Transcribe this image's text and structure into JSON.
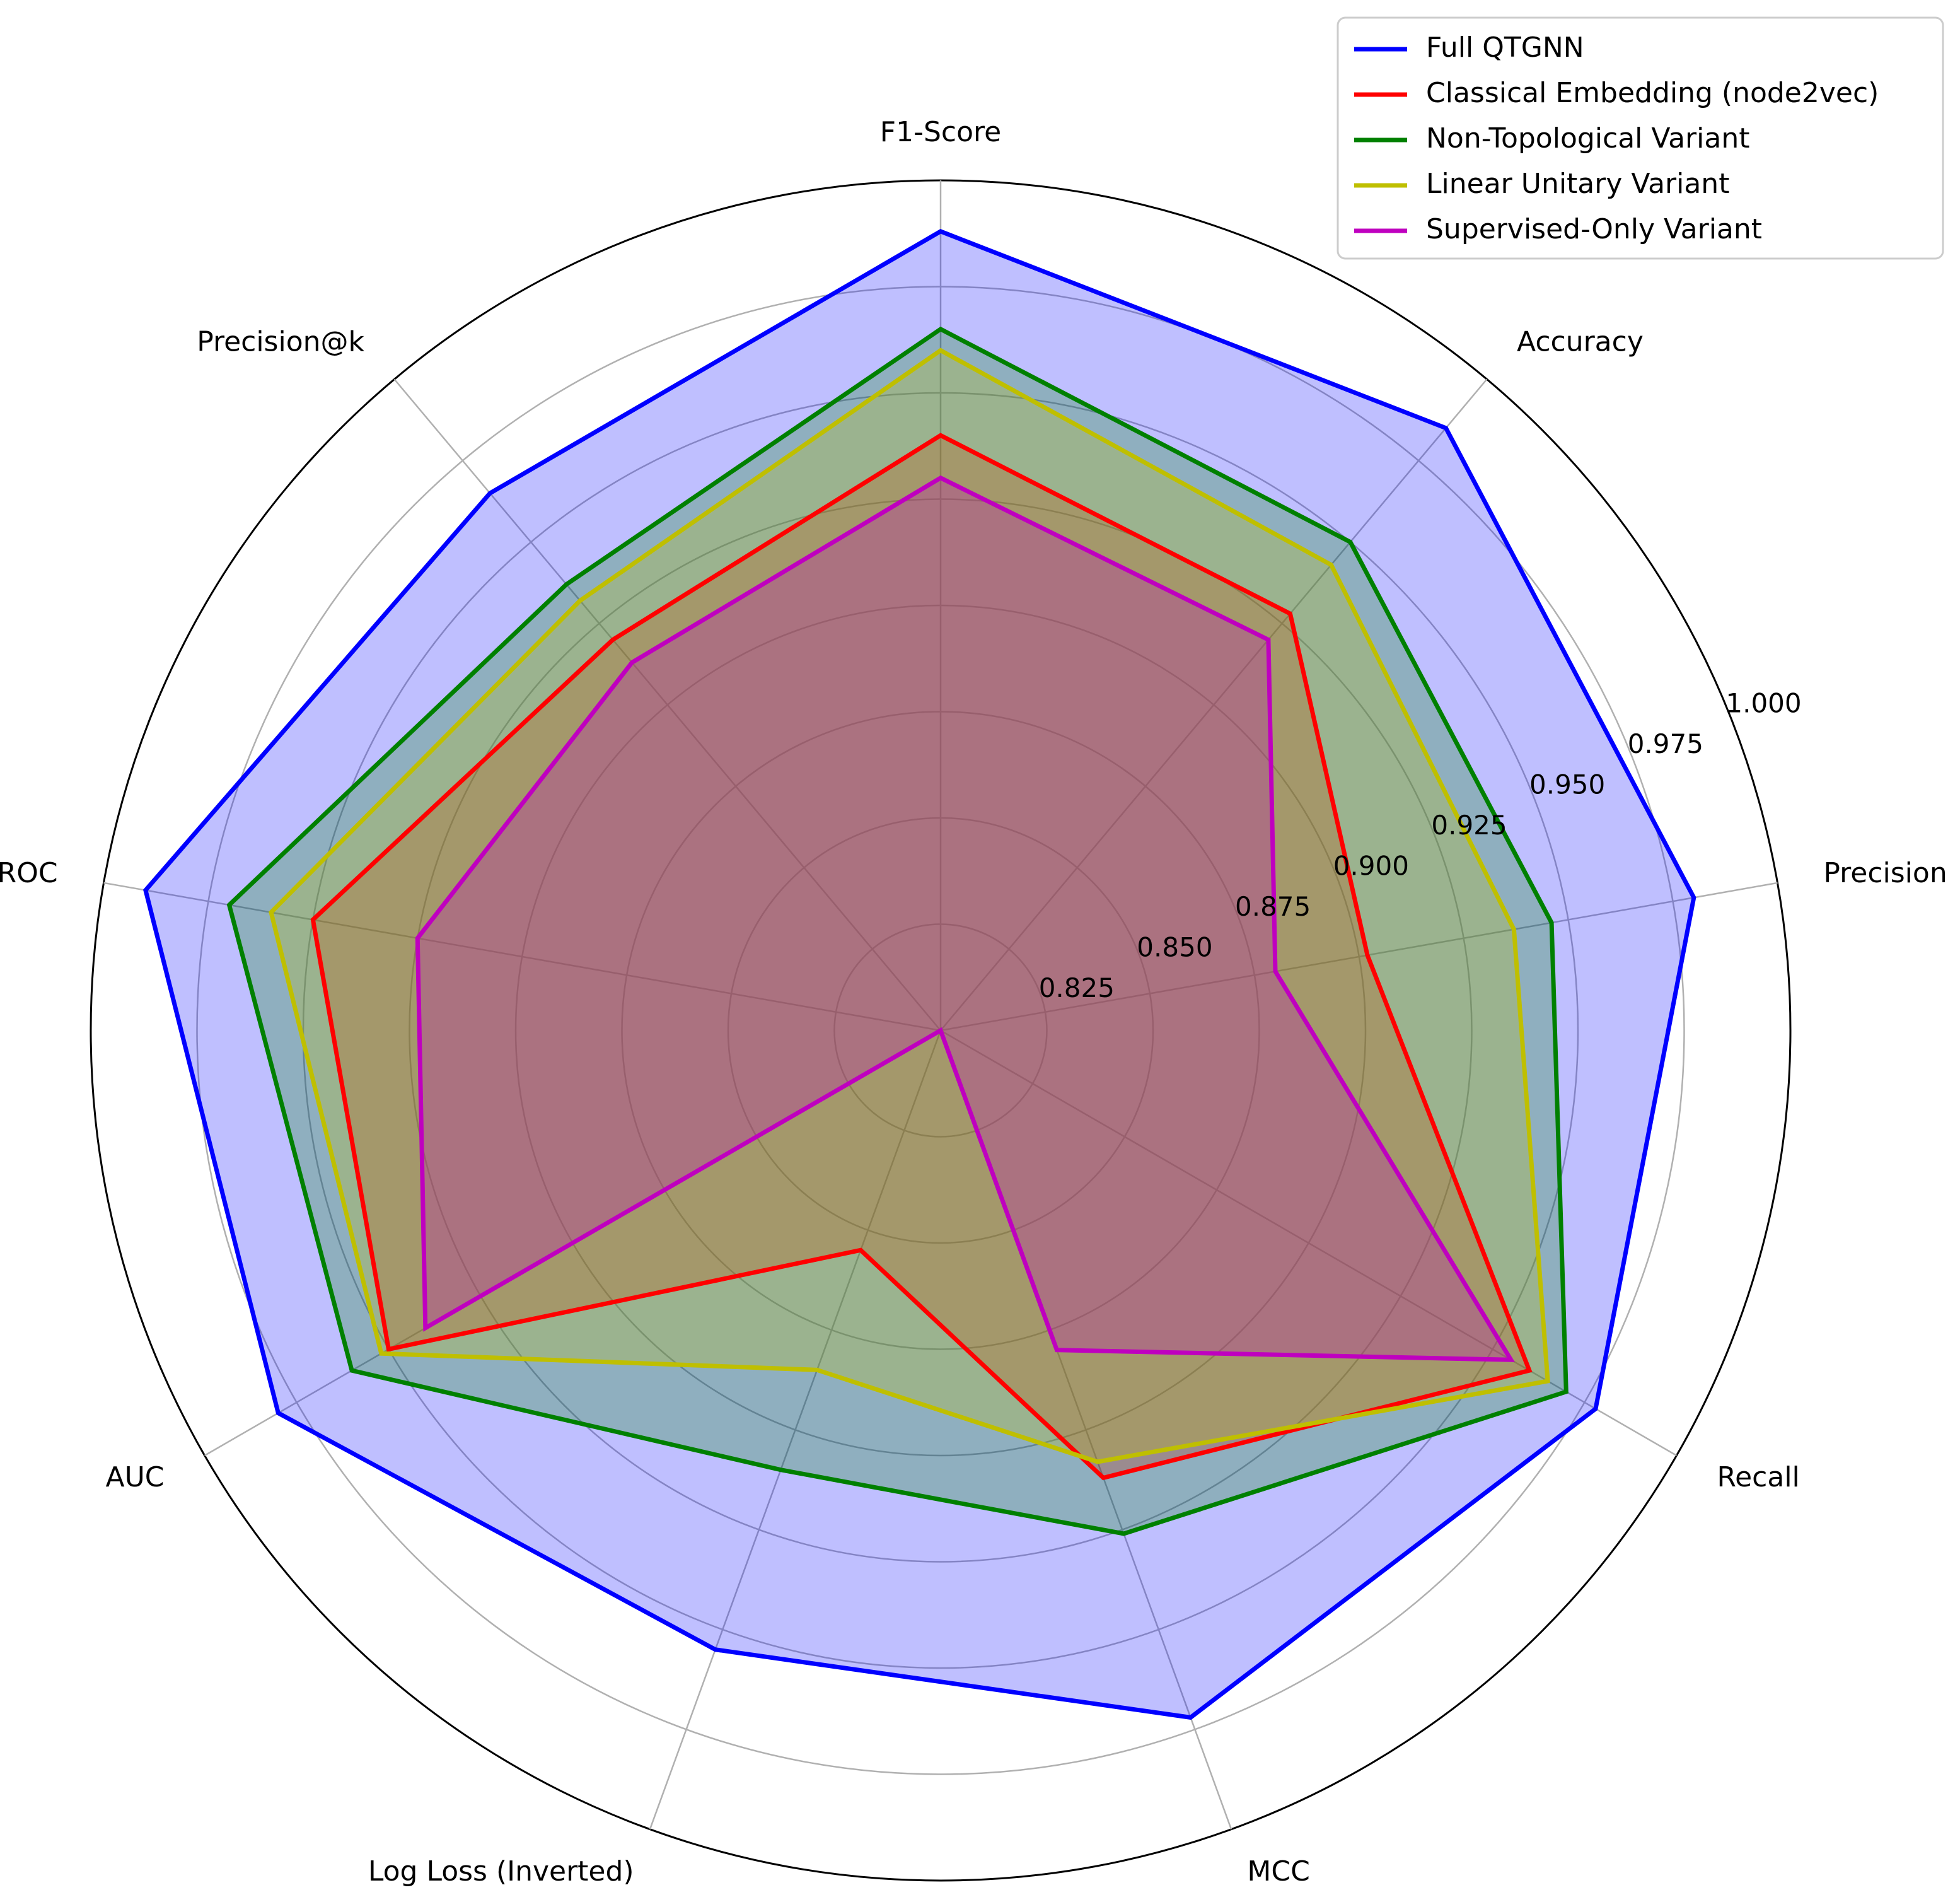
{
  "chart_data": {
    "type": "radar",
    "axes": [
      "F1-Score",
      "Accuracy",
      "Precision",
      "Recall",
      "MCC",
      "Log Loss (Inverted)",
      "AUC",
      "ROC",
      "Precision@k"
    ],
    "rlim": [
      0.8,
      1.0
    ],
    "radial_ticks": [
      0.825,
      0.85,
      0.875,
      0.9,
      0.925,
      0.95,
      0.975,
      1.0
    ],
    "radial_tick_labels": [
      "0.825",
      "0.850",
      "0.875",
      "0.900",
      "0.925",
      "0.950",
      "0.975",
      "1.000"
    ],
    "grid": true,
    "legend_position": "top-right",
    "series": [
      {
        "name": "Full QTGNN",
        "color": "#0000ff",
        "values": [
          0.988,
          0.985,
          0.98,
          0.978,
          0.972,
          0.955,
          0.98,
          0.99,
          0.965
        ]
      },
      {
        "name": "Classical Embedding (node2vec)",
        "color": "#ff0000",
        "values": [
          0.94,
          0.928,
          0.902,
          0.96,
          0.912,
          0.855,
          0.95,
          0.95,
          0.92
        ]
      },
      {
        "name": "Non-Topological Variant",
        "color": "#008000",
        "values": [
          0.965,
          0.95,
          0.946,
          0.97,
          0.926,
          0.91,
          0.96,
          0.97,
          0.937
        ]
      },
      {
        "name": "Linear Unitary Variant",
        "color": "#bfbf00",
        "values": [
          0.96,
          0.943,
          0.937,
          0.965,
          0.908,
          0.885,
          0.952,
          0.96,
          0.932
        ]
      },
      {
        "name": "Supervised-Only Variant",
        "color": "#bf00bf",
        "values": [
          0.93,
          0.92,
          0.88,
          0.955,
          0.88,
          0.8,
          0.94,
          0.925,
          0.913
        ]
      }
    ]
  }
}
